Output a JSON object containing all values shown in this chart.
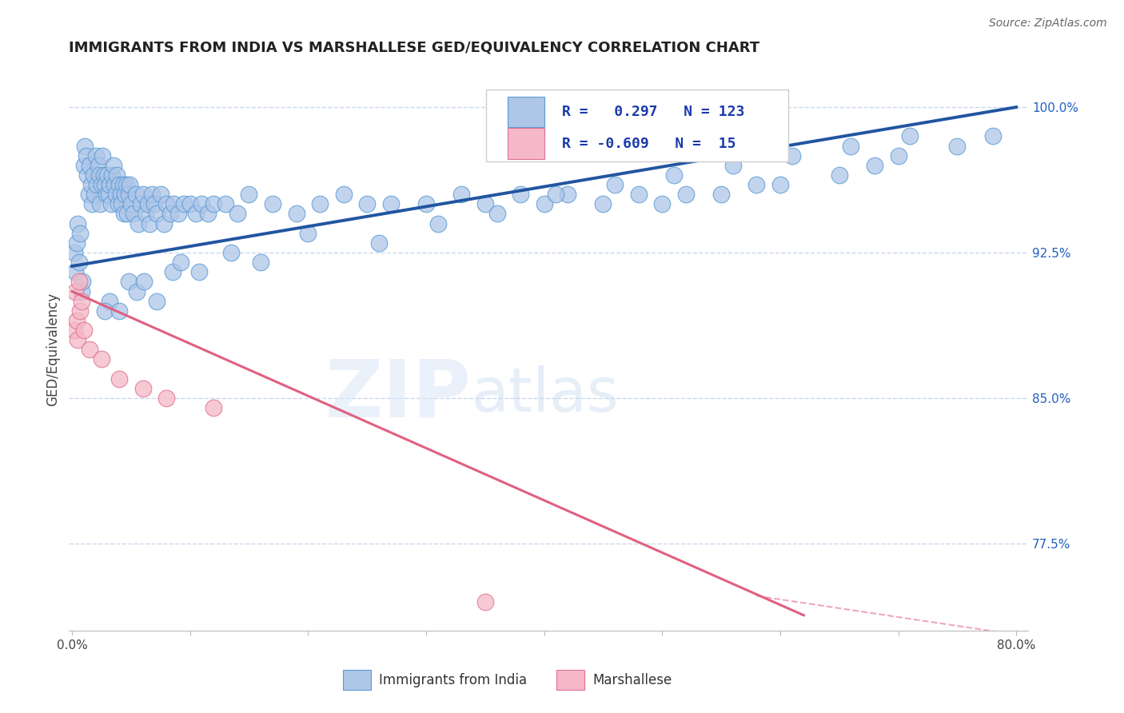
{
  "title": "IMMIGRANTS FROM INDIA VS MARSHALLESE GED/EQUIVALENCY CORRELATION CHART",
  "source": "Source: ZipAtlas.com",
  "ylabel": "GED/Equivalency",
  "y_ticks": [
    100.0,
    92.5,
    85.0,
    77.5
  ],
  "y_tick_labels": [
    "100.0%",
    "92.5%",
    "85.0%",
    "77.5%"
  ],
  "y_min": 73.0,
  "y_max": 102.0,
  "x_min": -0.3,
  "x_max": 81.0,
  "blue_R": "0.297",
  "blue_N": "123",
  "pink_R": "-0.609",
  "pink_N": "15",
  "blue_color": "#aec6e8",
  "blue_edge_color": "#5b9bd5",
  "blue_line_color": "#2155a0",
  "pink_color": "#f4b8c8",
  "pink_edge_color": "#e07090",
  "pink_line_color": "#e06080",
  "blue_scatter_x": [
    0.2,
    0.3,
    0.4,
    0.5,
    0.6,
    0.7,
    0.8,
    0.9,
    1.0,
    1.1,
    1.2,
    1.3,
    1.4,
    1.5,
    1.6,
    1.7,
    1.8,
    1.9,
    2.0,
    2.1,
    2.2,
    2.3,
    2.4,
    2.5,
    2.6,
    2.7,
    2.8,
    2.9,
    3.0,
    3.1,
    3.2,
    3.3,
    3.4,
    3.5,
    3.6,
    3.7,
    3.8,
    3.9,
    4.0,
    4.1,
    4.2,
    4.3,
    4.4,
    4.5,
    4.6,
    4.7,
    4.8,
    4.9,
    5.0,
    5.2,
    5.4,
    5.6,
    5.8,
    6.0,
    6.2,
    6.4,
    6.6,
    6.8,
    7.0,
    7.2,
    7.5,
    7.8,
    8.0,
    8.3,
    8.6,
    9.0,
    9.5,
    10.0,
    10.5,
    11.0,
    11.5,
    12.0,
    13.0,
    14.0,
    15.0,
    17.0,
    19.0,
    21.0,
    23.0,
    25.0,
    27.0,
    30.0,
    33.0,
    35.0,
    38.0,
    40.0,
    42.0,
    45.0,
    48.0,
    50.0,
    52.0,
    55.0,
    58.0,
    60.0,
    65.0,
    68.0,
    70.0,
    75.0,
    78.0,
    4.8,
    5.5,
    6.1,
    3.2,
    2.8,
    4.0,
    7.2,
    8.5,
    9.2,
    10.8,
    13.5,
    16.0,
    20.0,
    26.0,
    31.0,
    36.0,
    41.0,
    46.0,
    51.0,
    56.0,
    61.0,
    66.0,
    71.0
  ],
  "blue_scatter_y": [
    92.5,
    91.5,
    93.0,
    94.0,
    92.0,
    93.5,
    90.5,
    91.0,
    97.0,
    98.0,
    97.5,
    96.5,
    95.5,
    97.0,
    96.0,
    95.0,
    96.5,
    95.5,
    97.5,
    96.0,
    97.0,
    96.5,
    95.0,
    96.0,
    97.5,
    96.5,
    96.0,
    95.5,
    96.5,
    95.5,
    96.0,
    95.0,
    96.5,
    97.0,
    96.0,
    95.5,
    96.5,
    95.0,
    96.0,
    95.5,
    95.0,
    96.0,
    94.5,
    95.5,
    96.0,
    94.5,
    95.5,
    96.0,
    95.0,
    94.5,
    95.5,
    94.0,
    95.0,
    95.5,
    94.5,
    95.0,
    94.0,
    95.5,
    95.0,
    94.5,
    95.5,
    94.0,
    95.0,
    94.5,
    95.0,
    94.5,
    95.0,
    95.0,
    94.5,
    95.0,
    94.5,
    95.0,
    95.0,
    94.5,
    95.5,
    95.0,
    94.5,
    95.0,
    95.5,
    95.0,
    95.0,
    95.0,
    95.5,
    95.0,
    95.5,
    95.0,
    95.5,
    95.0,
    95.5,
    95.0,
    95.5,
    95.5,
    96.0,
    96.0,
    96.5,
    97.0,
    97.5,
    98.0,
    98.5,
    91.0,
    90.5,
    91.0,
    90.0,
    89.5,
    89.5,
    90.0,
    91.5,
    92.0,
    91.5,
    92.5,
    92.0,
    93.5,
    93.0,
    94.0,
    94.5,
    95.5,
    96.0,
    96.5,
    97.0,
    97.5,
    98.0,
    98.5
  ],
  "pink_scatter_x": [
    0.2,
    0.3,
    0.4,
    0.5,
    0.6,
    0.7,
    0.8,
    1.0,
    1.5,
    2.5,
    4.0,
    6.0,
    8.0,
    12.0,
    35.0
  ],
  "pink_scatter_y": [
    88.5,
    90.5,
    89.0,
    88.0,
    91.0,
    89.5,
    90.0,
    88.5,
    87.5,
    87.0,
    86.0,
    85.5,
    85.0,
    84.5,
    74.5
  ],
  "blue_line_x0": 0.0,
  "blue_line_x1": 80.0,
  "blue_line_y0": 91.8,
  "blue_line_y1": 100.0,
  "pink_line_x0": 0.0,
  "pink_line_x1": 62.0,
  "pink_line_y0": 90.5,
  "pink_line_y1": 73.8,
  "pink_dash_x0": 58.0,
  "pink_dash_x1": 80.0,
  "pink_dash_y0": 74.8,
  "pink_dash_y1": 72.8,
  "watermark_zip": "ZIP",
  "watermark_atlas": "atlas",
  "background_color": "#ffffff",
  "grid_color": "#c8d8ee",
  "title_fontsize": 13,
  "tick_fontsize": 11,
  "axis_label_fontsize": 12,
  "legend_fontsize": 12
}
